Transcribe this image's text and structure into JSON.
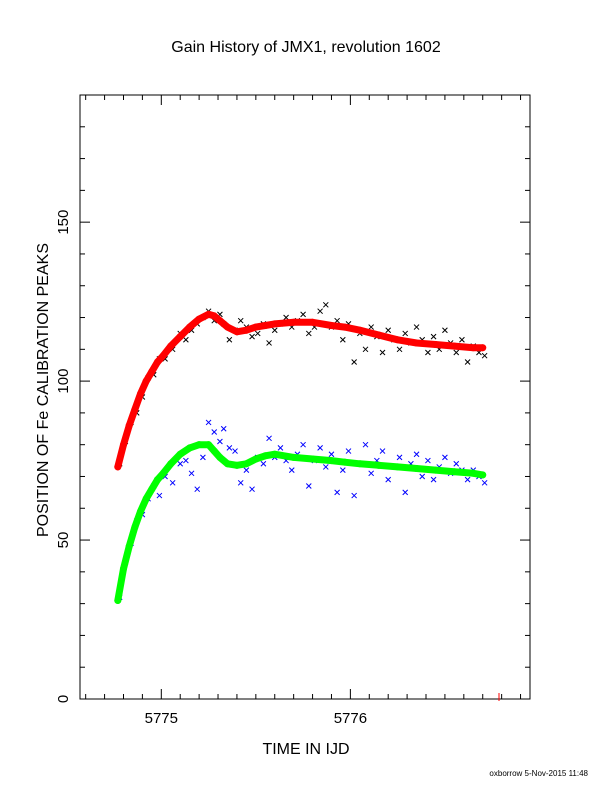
{
  "chart_data": {
    "type": "scatter",
    "title": "Gain History of JMX1, revolution 1602",
    "xlabel": "TIME IN IJD",
    "ylabel": "POSITION OF Fe CALIBRATION PEAKS",
    "footer": "oxborrow  5-Nov-2015 11:48",
    "xlim": [
      5774.57,
      5776.95
    ],
    "ylim": [
      0,
      190
    ],
    "x_tick_labels": [
      5775,
      5776
    ],
    "y_tick_labels": [
      0,
      50,
      100,
      150
    ],
    "x_minor_ticks": [
      5774.6,
      5774.7,
      5774.8,
      5774.9,
      5775.1,
      5775.2,
      5775.3,
      5775.4,
      5775.5,
      5775.6,
      5775.7,
      5775.8,
      5775.9,
      5776.1,
      5776.2,
      5776.3,
      5776.4,
      5776.5,
      5776.6,
      5776.7,
      5776.8,
      5776.9
    ],
    "y_minor_ticks": [
      10,
      20,
      30,
      40,
      60,
      70,
      80,
      90,
      110,
      120,
      130,
      140,
      160,
      170,
      180
    ],
    "grid": false,
    "series": [
      {
        "color": "#ff0000",
        "marker": "line",
        "x": [
          5774.77,
          5774.8,
          5774.83,
          5774.86,
          5774.89,
          5774.92,
          5774.95,
          5774.98,
          5775.01,
          5775.05,
          5775.1,
          5775.15,
          5775.2,
          5775.25,
          5775.28,
          5775.31,
          5775.35,
          5775.4,
          5775.45,
          5775.5,
          5775.55,
          5775.6,
          5775.7,
          5775.8,
          5775.9,
          5775.97,
          5776.05,
          5776.15,
          5776.25,
          5776.35,
          5776.45,
          5776.55,
          5776.65,
          5776.7
        ],
        "y": [
          73,
          80,
          86,
          91,
          96,
          100,
          103,
          106,
          108,
          111,
          114,
          117,
          119.5,
          121,
          120.5,
          119,
          117,
          115.5,
          116,
          117,
          117.5,
          118,
          118.5,
          118.5,
          117.5,
          117,
          116,
          114.5,
          113,
          112,
          111.5,
          111,
          110.5,
          110.5
        ]
      },
      {
        "color": "#00ff00",
        "marker": "line",
        "x": [
          5774.77,
          5774.8,
          5774.83,
          5774.86,
          5774.89,
          5774.92,
          5774.95,
          5774.98,
          5775.01,
          5775.05,
          5775.1,
          5775.15,
          5775.2,
          5775.25,
          5775.28,
          5775.31,
          5775.35,
          5775.4,
          5775.45,
          5775.5,
          5775.55,
          5775.6,
          5775.7,
          5775.8,
          5775.9,
          5775.97,
          5776.05,
          5776.15,
          5776.25,
          5776.35,
          5776.45,
          5776.55,
          5776.65,
          5776.7
        ],
        "y": [
          31,
          41,
          48,
          54,
          59,
          63,
          66,
          69,
          71,
          74,
          77,
          79,
          80,
          80,
          78,
          76,
          74,
          73.5,
          74,
          75.5,
          76.5,
          77,
          76,
          75.5,
          75,
          74.5,
          74,
          73.5,
          73,
          72.5,
          72,
          71.5,
          71,
          70.5
        ]
      },
      {
        "color": "#000000",
        "marker": "x",
        "x": [
          5774.78,
          5774.81,
          5774.84,
          5774.87,
          5774.9,
          5774.93,
          5774.96,
          5774.99,
          5775.02,
          5775.06,
          5775.1,
          5775.13,
          5775.16,
          5775.19,
          5775.22,
          5775.25,
          5775.28,
          5775.31,
          5775.33,
          5775.36,
          5775.39,
          5775.42,
          5775.45,
          5775.48,
          5775.51,
          5775.54,
          5775.57,
          5775.6,
          5775.63,
          5775.66,
          5775.69,
          5775.72,
          5775.75,
          5775.78,
          5775.81,
          5775.84,
          5775.87,
          5775.9,
          5775.93,
          5775.96,
          5775.99,
          5776.02,
          5776.05,
          5776.08,
          5776.11,
          5776.14,
          5776.17,
          5776.2,
          5776.23,
          5776.26,
          5776.29,
          5776.32,
          5776.35,
          5776.38,
          5776.41,
          5776.44,
          5776.47,
          5776.5,
          5776.53,
          5776.56,
          5776.59,
          5776.62,
          5776.65,
          5776.68,
          5776.71
        ],
        "y": [
          74,
          81,
          87,
          90,
          95,
          101,
          102,
          107,
          107,
          110,
          115,
          113,
          116,
          118,
          120,
          122,
          119,
          121,
          118,
          113,
          116,
          119,
          117,
          114,
          115,
          118,
          112,
          116,
          118,
          120,
          117,
          119,
          121,
          115,
          117,
          122,
          124,
          117,
          119,
          113,
          118,
          106,
          115,
          110,
          117,
          114,
          109,
          116,
          113,
          110,
          115,
          112,
          117,
          113,
          109,
          114,
          110,
          116,
          112,
          109,
          113,
          106,
          111,
          109,
          108
        ]
      },
      {
        "color": "#0000ff",
        "marker": "x",
        "x": [
          5774.78,
          5774.81,
          5774.84,
          5774.87,
          5774.9,
          5774.93,
          5774.96,
          5774.99,
          5775.02,
          5775.06,
          5775.1,
          5775.13,
          5775.16,
          5775.19,
          5775.22,
          5775.25,
          5775.28,
          5775.31,
          5775.33,
          5775.36,
          5775.39,
          5775.42,
          5775.45,
          5775.48,
          5775.51,
          5775.54,
          5775.57,
          5775.6,
          5775.63,
          5775.66,
          5775.69,
          5775.72,
          5775.75,
          5775.78,
          5775.81,
          5775.84,
          5775.87,
          5775.9,
          5775.93,
          5775.96,
          5775.99,
          5776.02,
          5776.05,
          5776.08,
          5776.11,
          5776.14,
          5776.17,
          5776.2,
          5776.23,
          5776.26,
          5776.29,
          5776.32,
          5776.35,
          5776.38,
          5776.41,
          5776.44,
          5776.47,
          5776.5,
          5776.53,
          5776.56,
          5776.59,
          5776.62,
          5776.65,
          5776.68,
          5776.71
        ],
        "y": [
          32,
          43,
          49,
          56,
          58,
          63,
          67,
          64,
          70,
          68,
          74,
          75,
          71,
          66,
          76,
          87,
          84,
          81,
          85,
          79,
          78,
          68,
          72,
          66,
          76,
          74,
          82,
          76,
          79,
          75,
          72,
          77,
          80,
          67,
          75,
          79,
          73,
          77,
          65,
          72,
          78,
          64,
          74,
          80,
          71,
          75,
          78,
          69,
          73,
          76,
          65,
          74,
          77,
          70,
          75,
          69,
          73,
          76,
          71,
          74,
          72,
          69,
          72,
          70,
          68
        ]
      }
    ]
  }
}
